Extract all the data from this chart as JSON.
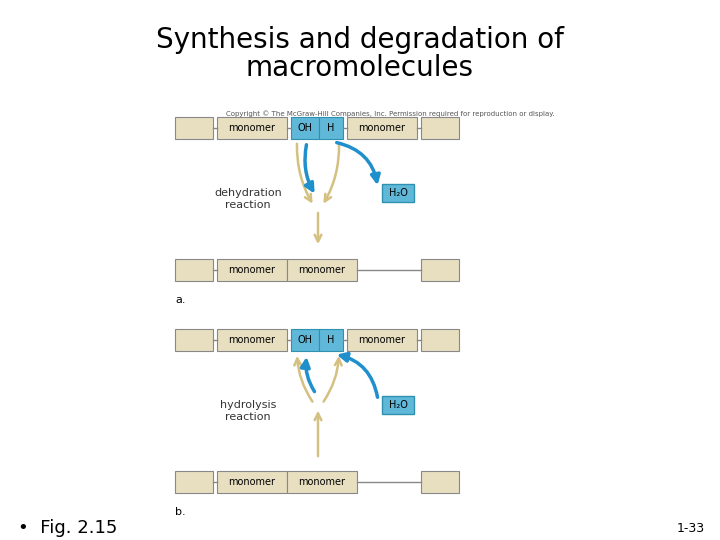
{
  "title_line1": "Synthesis and degradation of",
  "title_line2": "macromolecules",
  "title_fontsize": 20,
  "fig_bg": "#ffffff",
  "box_facecolor": "#e8dfc0",
  "box_edgecolor": "#888888",
  "blue_facecolor": "#60b8d8",
  "blue_edgecolor": "#3090b0",
  "arrow_color_blue": "#2090cc",
  "arrow_color_tan": "#d4c080",
  "label_monomer": "monomer",
  "label_OH": "OH",
  "label_H": "H",
  "label_H2O": "H₂O",
  "label_dehydration": "dehydration\nreaction",
  "label_hydrolysis": "hydrolysis\nreaction",
  "label_a": "a.",
  "label_b": "b.",
  "label_fig": "•  Fig. 2.15",
  "label_page": "1-33",
  "copyright": "Copyright © The McGraw-Hill Companies, Inc. Permission required for reproduction or display.",
  "monomer_fontsize": 7,
  "label_fontsize": 8,
  "small_fontsize": 5
}
